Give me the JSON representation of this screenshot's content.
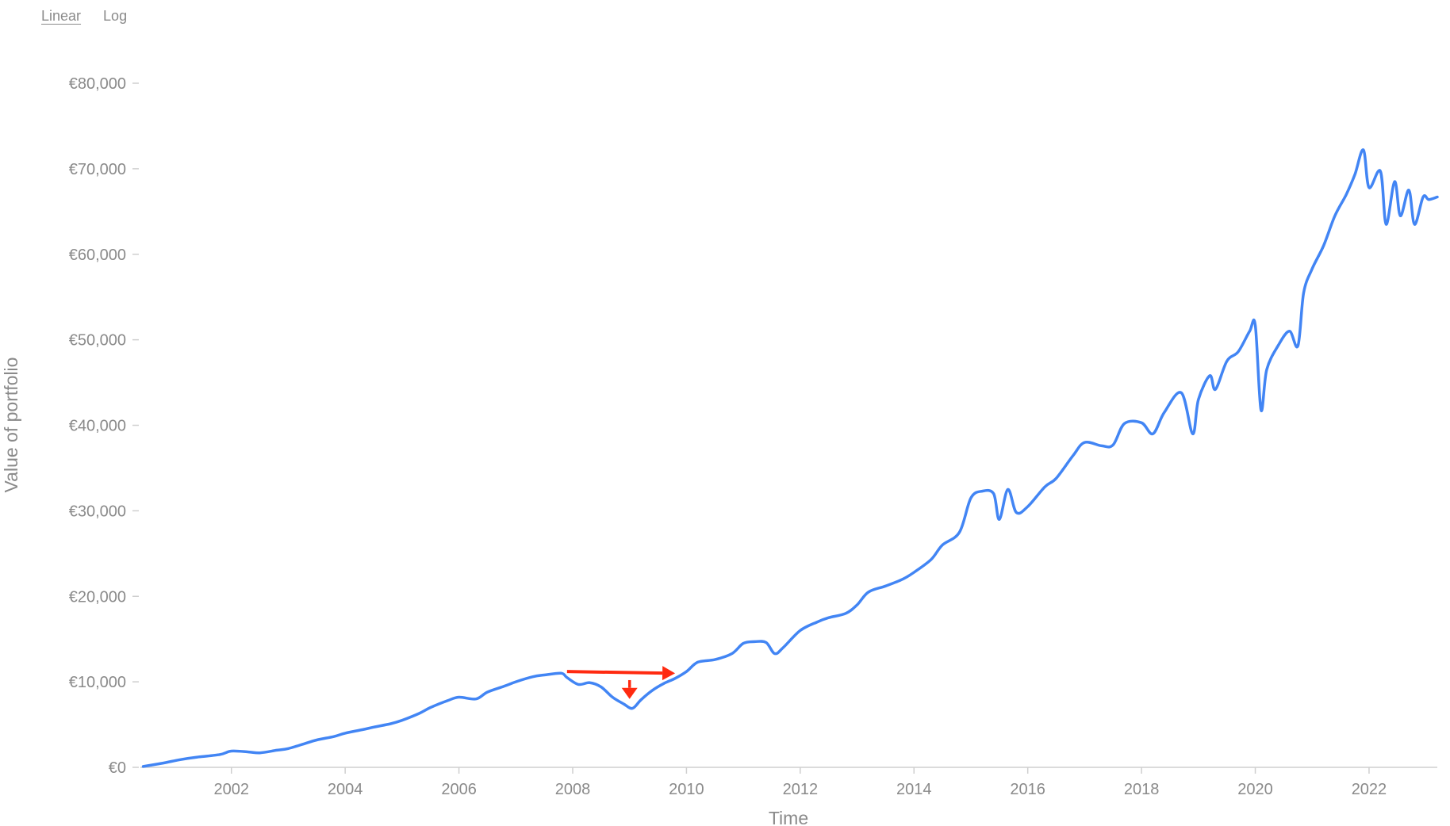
{
  "scale_toggle": {
    "options": [
      "Linear",
      "Log"
    ],
    "selected": "Linear"
  },
  "colors": {
    "line": "#4285f4",
    "annotation": "#ff2a10",
    "text": "#8a8a8a",
    "axis": "#cfcfcf"
  },
  "chart_data": {
    "type": "line",
    "title": "",
    "xlabel": "Time",
    "ylabel": "Value of portfolio",
    "xlim": [
      2000.4,
      2023.2
    ],
    "ylim": [
      0,
      80000
    ],
    "x_ticks": [
      2002,
      2004,
      2006,
      2008,
      2010,
      2012,
      2014,
      2016,
      2018,
      2020,
      2022
    ],
    "y_ticks": [
      {
        "value": 0,
        "label": "€0"
      },
      {
        "value": 10000,
        "label": "€10,000"
      },
      {
        "value": 20000,
        "label": "€20,000"
      },
      {
        "value": 30000,
        "label": "€30,000"
      },
      {
        "value": 40000,
        "label": "€40,000"
      },
      {
        "value": 50000,
        "label": "€50,000"
      },
      {
        "value": 60000,
        "label": "€60,000"
      },
      {
        "value": 70000,
        "label": "€70,000"
      },
      {
        "value": 80000,
        "label": "€80,000"
      }
    ],
    "grid": false,
    "series": [
      {
        "x": [
          2000.45,
          2000.8,
          2001.1,
          2001.4,
          2001.8,
          2002.0,
          2002.3,
          2002.5,
          2002.8,
          2003.0,
          2003.3,
          2003.5,
          2003.8,
          2004.0,
          2004.3,
          2004.5,
          2004.8,
          2005.0,
          2005.3,
          2005.5,
          2005.8,
          2006.0,
          2006.3,
          2006.5,
          2006.8,
          2007.0,
          2007.3,
          2007.5,
          2007.8,
          2007.9,
          2008.1,
          2008.3,
          2008.5,
          2008.7,
          2008.9,
          2009.05,
          2009.2,
          2009.4,
          2009.6,
          2009.8,
          2010.0,
          2010.2,
          2010.5,
          2010.8,
          2011.0,
          2011.2,
          2011.4,
          2011.55,
          2011.7,
          2012.0,
          2012.3,
          2012.5,
          2012.8,
          2013.0,
          2013.2,
          2013.5,
          2013.8,
          2014.0,
          2014.3,
          2014.5,
          2014.8,
          2015.0,
          2015.2,
          2015.4,
          2015.5,
          2015.65,
          2015.8,
          2016.0,
          2016.3,
          2016.5,
          2016.8,
          2017.0,
          2017.3,
          2017.5,
          2017.7,
          2018.0,
          2018.2,
          2018.4,
          2018.7,
          2018.9,
          2019.0,
          2019.2,
          2019.3,
          2019.5,
          2019.7,
          2019.9,
          2020.0,
          2020.1,
          2020.2,
          2020.4,
          2020.6,
          2020.75,
          2020.85,
          2021.0,
          2021.2,
          2021.4,
          2021.6,
          2021.75,
          2021.9,
          2022.0,
          2022.2,
          2022.3,
          2022.45,
          2022.55,
          2022.7,
          2022.8,
          2022.95,
          2023.05,
          2023.2
        ],
        "y": [
          100,
          500,
          900,
          1200,
          1500,
          1900,
          1800,
          1700,
          2000,
          2200,
          2800,
          3200,
          3600,
          4000,
          4400,
          4700,
          5100,
          5500,
          6300,
          7000,
          7800,
          8200,
          8000,
          8800,
          9500,
          10000,
          10600,
          10800,
          11000,
          10500,
          9700,
          9900,
          9400,
          8200,
          7400,
          6900,
          7900,
          9000,
          9800,
          10400,
          11200,
          12300,
          12600,
          13300,
          14500,
          14700,
          14600,
          13300,
          14000,
          16000,
          17000,
          17500,
          18000,
          19000,
          20500,
          21200,
          22000,
          22800,
          24300,
          26000,
          27500,
          31500,
          32300,
          32000,
          29000,
          32500,
          29800,
          30500,
          32800,
          33800,
          36500,
          38000,
          37600,
          37700,
          40200,
          40300,
          39000,
          41500,
          43800,
          39000,
          43000,
          45800,
          44200,
          47500,
          48600,
          51000,
          51700,
          41800,
          46500,
          49300,
          51000,
          49300,
          55500,
          58300,
          61000,
          64500,
          67000,
          69300,
          72200,
          67800,
          69700,
          63500,
          68500,
          64500,
          67500,
          63500,
          66700,
          66400,
          66700
        ]
      }
    ],
    "annotations": [
      {
        "type": "arrow",
        "direction": "right",
        "from": [
          2007.9,
          11200
        ],
        "to": [
          2009.8,
          11000
        ]
      },
      {
        "type": "arrow",
        "direction": "down",
        "from": [
          2009.0,
          10200
        ],
        "to": [
          2009.0,
          8000
        ]
      }
    ]
  }
}
